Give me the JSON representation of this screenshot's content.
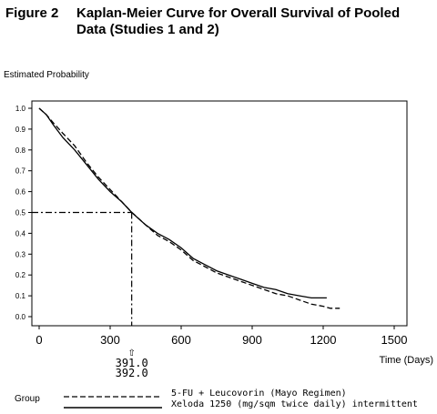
{
  "figure": {
    "label": "Figure 2",
    "title": "Kaplan-Meier Curve for Overall Survival of Pooled Data (Studies 1 and 2)"
  },
  "legend": {
    "group_label": "Group",
    "entries": [
      {
        "name": "5-FU + Leucovorin (Mayo Regimen)",
        "style": "dashed"
      },
      {
        "name": "Xeloda 1250 (mg/sqm twice daily) intermittent",
        "style": "solid"
      }
    ]
  },
  "chart_data": {
    "type": "line",
    "ylabel": "Estimated Probability",
    "xlabel": "Time (Days)",
    "xlim": [
      0,
      1500
    ],
    "ylim": [
      0.0,
      1.0
    ],
    "xticks": [
      0,
      300,
      600,
      900,
      1200,
      1500
    ],
    "yticks": [
      0.0,
      0.1,
      0.2,
      0.3,
      0.4,
      0.5,
      0.6,
      0.7,
      0.8,
      0.9,
      1.0
    ],
    "median": {
      "y": 0.5,
      "values": [
        "391.0",
        "392.0"
      ],
      "x": 391
    },
    "series": [
      {
        "name": "5-FU + Leucovorin (Mayo Regimen)",
        "style": "dashed",
        "points": [
          [
            0,
            1.0
          ],
          [
            30,
            0.97
          ],
          [
            60,
            0.93
          ],
          [
            100,
            0.88
          ],
          [
            150,
            0.82
          ],
          [
            200,
            0.74
          ],
          [
            250,
            0.67
          ],
          [
            300,
            0.61
          ],
          [
            350,
            0.55
          ],
          [
            392,
            0.5
          ],
          [
            450,
            0.44
          ],
          [
            500,
            0.39
          ],
          [
            550,
            0.36
          ],
          [
            600,
            0.32
          ],
          [
            650,
            0.27
          ],
          [
            700,
            0.24
          ],
          [
            750,
            0.21
          ],
          [
            800,
            0.19
          ],
          [
            850,
            0.17
          ],
          [
            900,
            0.15
          ],
          [
            950,
            0.13
          ],
          [
            1000,
            0.11
          ],
          [
            1050,
            0.1
          ],
          [
            1100,
            0.08
          ],
          [
            1150,
            0.06
          ],
          [
            1200,
            0.05
          ],
          [
            1230,
            0.04
          ],
          [
            1270,
            0.04
          ]
        ]
      },
      {
        "name": "Xeloda 1250 (mg/sqm twice daily) intermittent",
        "style": "solid",
        "points": [
          [
            0,
            1.0
          ],
          [
            30,
            0.97
          ],
          [
            60,
            0.92
          ],
          [
            100,
            0.86
          ],
          [
            150,
            0.8
          ],
          [
            200,
            0.73
          ],
          [
            250,
            0.66
          ],
          [
            300,
            0.6
          ],
          [
            350,
            0.55
          ],
          [
            391,
            0.5
          ],
          [
            450,
            0.44
          ],
          [
            500,
            0.4
          ],
          [
            550,
            0.37
          ],
          [
            600,
            0.33
          ],
          [
            650,
            0.28
          ],
          [
            700,
            0.25
          ],
          [
            750,
            0.22
          ],
          [
            800,
            0.2
          ],
          [
            850,
            0.18
          ],
          [
            900,
            0.16
          ],
          [
            950,
            0.14
          ],
          [
            1000,
            0.13
          ],
          [
            1050,
            0.11
          ],
          [
            1100,
            0.1
          ],
          [
            1150,
            0.09
          ],
          [
            1215,
            0.09
          ]
        ]
      }
    ]
  }
}
